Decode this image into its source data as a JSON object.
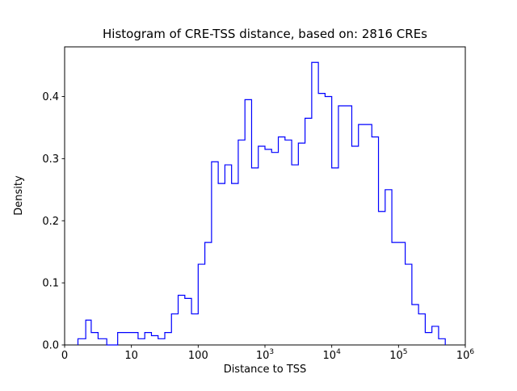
{
  "chart_data": {
    "type": "histogram",
    "histtype": "step",
    "title": "Histogram of CRE-TSS distance, based on: 2816 CREs",
    "xlabel": "Distance to TSS",
    "ylabel": "Density",
    "xscale": "symlog",
    "ylim": [
      0,
      0.48
    ],
    "line_color": "#0000ff",
    "x_ticks": [
      {
        "label": "0",
        "value": 0
      },
      {
        "label": "10",
        "value": 10
      },
      {
        "label": "100",
        "value": 100
      },
      {
        "label": "10",
        "exp": "3",
        "value": 1000
      },
      {
        "label": "10",
        "exp": "4",
        "value": 10000
      },
      {
        "label": "10",
        "exp": "5",
        "value": 100000
      },
      {
        "label": "10",
        "exp": "6",
        "value": 1000000
      }
    ],
    "y_ticks": [
      {
        "label": "0.0",
        "value": 0.0
      },
      {
        "label": "0.1",
        "value": 0.1
      },
      {
        "label": "0.2",
        "value": 0.2
      },
      {
        "label": "0.3",
        "value": 0.3
      },
      {
        "label": "0.4",
        "value": 0.4
      }
    ],
    "bin_edges_log10": [
      0.3,
      0.4,
      0.5,
      0.6,
      0.7,
      0.8,
      0.9,
      1.0,
      1.1,
      1.2,
      1.3,
      1.4,
      1.5,
      1.6,
      1.7,
      1.8,
      1.9,
      2.0,
      2.1,
      2.2,
      2.3,
      2.4,
      2.5,
      2.6,
      2.7,
      2.8,
      2.9,
      3.0,
      3.1,
      3.2,
      3.3,
      3.4,
      3.5,
      3.6,
      3.7,
      3.8,
      3.9,
      4.0,
      4.1,
      4.2,
      4.3,
      4.4,
      4.5,
      4.6,
      4.7,
      4.8,
      4.9,
      5.0,
      5.1,
      5.2,
      5.3,
      5.4,
      5.5,
      5.6,
      5.7
    ],
    "densities": [
      0.01,
      0.01,
      0.04,
      0.02,
      0.01,
      0.0,
      0.02,
      0.02,
      0.01,
      0.02,
      0.015,
      0.01,
      0.02,
      0.05,
      0.08,
      0.075,
      0.05,
      0.13,
      0.165,
      0.295,
      0.26,
      0.29,
      0.26,
      0.33,
      0.395,
      0.285,
      0.32,
      0.315,
      0.31,
      0.335,
      0.33,
      0.29,
      0.325,
      0.365,
      0.455,
      0.405,
      0.4,
      0.285,
      0.385,
      0.385,
      0.32,
      0.355,
      0.355,
      0.335,
      0.215,
      0.25,
      0.165,
      0.165,
      0.13,
      0.065,
      0.05,
      0.02,
      0.03,
      0.01
    ]
  }
}
